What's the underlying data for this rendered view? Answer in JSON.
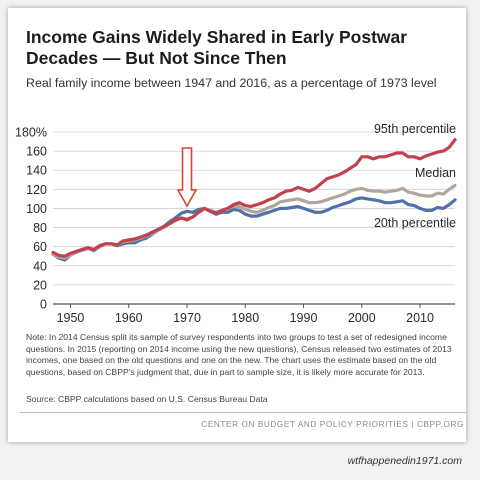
{
  "chart_data": {
    "type": "line",
    "title": "Income Gains Widely Shared in Early Postwar Decades — But Not Since Then",
    "subtitle": "Real family income between 1947 and 2016, as a percentage of 1973 level",
    "xlim": [
      1947,
      2016
    ],
    "ylim": [
      0,
      180
    ],
    "x_ticks": [
      "1950",
      "1960",
      "1970",
      "1980",
      "1990",
      "2000",
      "2010"
    ],
    "y_ticks": [
      "0",
      "20",
      "40",
      "60",
      "80",
      "100",
      "120",
      "140",
      "160",
      "180%"
    ],
    "grid": "horizontal",
    "annotation": "down-arrow at 1970",
    "x": [
      1947,
      1948,
      1949,
      1950,
      1951,
      1952,
      1953,
      1954,
      1955,
      1956,
      1957,
      1958,
      1959,
      1960,
      1961,
      1962,
      1963,
      1964,
      1965,
      1966,
      1967,
      1968,
      1969,
      1970,
      1971,
      1972,
      1973,
      1974,
      1975,
      1976,
      1977,
      1978,
      1979,
      1980,
      1981,
      1982,
      1983,
      1984,
      1985,
      1986,
      1987,
      1988,
      1989,
      1990,
      1991,
      1992,
      1993,
      1994,
      1995,
      1996,
      1997,
      1998,
      1999,
      2000,
      2001,
      2002,
      2003,
      2004,
      2005,
      2006,
      2007,
      2008,
      2009,
      2010,
      2011,
      2012,
      2013,
      2014,
      2015,
      2016
    ],
    "series": [
      {
        "name": "95th percentile",
        "color": "#c0424f",
        "values": [
          54,
          51,
          50,
          53,
          55,
          57,
          59,
          57,
          61,
          63,
          63,
          62,
          66,
          67,
          68,
          70,
          72,
          75,
          78,
          81,
          84,
          88,
          90,
          88,
          91,
          96,
          100,
          97,
          95,
          98,
          100,
          104,
          106,
          103,
          102,
          104,
          106,
          109,
          111,
          115,
          118,
          119,
          122,
          120,
          118,
          121,
          126,
          131,
          133,
          135,
          138,
          142,
          146,
          154,
          154,
          152,
          154,
          154,
          156,
          158,
          158,
          154,
          154,
          152,
          155,
          157,
          159,
          160,
          164,
          172
        ]
      },
      {
        "name": "Median",
        "color": "#b2a59a",
        "values": [
          52,
          49,
          48,
          51,
          54,
          56,
          58,
          57,
          60,
          63,
          63,
          62,
          65,
          66,
          67,
          69,
          71,
          74,
          77,
          80,
          84,
          87,
          90,
          89,
          91,
          96,
          100,
          98,
          96,
          98,
          100,
          102,
          102,
          99,
          97,
          96,
          98,
          101,
          103,
          107,
          108,
          109,
          110,
          108,
          106,
          106,
          107,
          109,
          111,
          113,
          115,
          118,
          120,
          121,
          119,
          118,
          118,
          117,
          118,
          119,
          121,
          117,
          116,
          114,
          113,
          113,
          116,
          115,
          120,
          124
        ]
      },
      {
        "name": "20th percentile",
        "color": "#5072a8",
        "values": [
          52,
          48,
          46,
          51,
          55,
          57,
          58,
          56,
          60,
          63,
          63,
          61,
          63,
          64,
          64,
          67,
          69,
          73,
          77,
          81,
          86,
          90,
          95,
          97,
          96,
          99,
          100,
          97,
          94,
          96,
          96,
          99,
          98,
          94,
          92,
          92,
          94,
          96,
          98,
          100,
          100,
          101,
          102,
          100,
          98,
          96,
          96,
          98,
          101,
          103,
          105,
          107,
          110,
          111,
          110,
          109,
          108,
          106,
          106,
          107,
          108,
          104,
          103,
          100,
          98,
          98,
          101,
          100,
          104,
          109
        ]
      }
    ]
  },
  "note": "Note: In 2014 Census split its sample of survey respondents into two groups to test a set of redesigned income questions.  In 2015 (reporting on 2014 income using the new questions), Census released two estimates of 2013 incomes, one based on the old questions and one on the new.  The chart uses the estimate based on the old questions, based on CBPP's judgment that, due in part to sample size, it is likely more accurate for 2013.",
  "source": "Source: CBPP calculations based on U.S. Census Bureau Data",
  "footer": "CENTER ON BUDGET AND POLICY PRIORITIES | CBPP.ORG",
  "watermark": "wtfhappenedin1971.com"
}
